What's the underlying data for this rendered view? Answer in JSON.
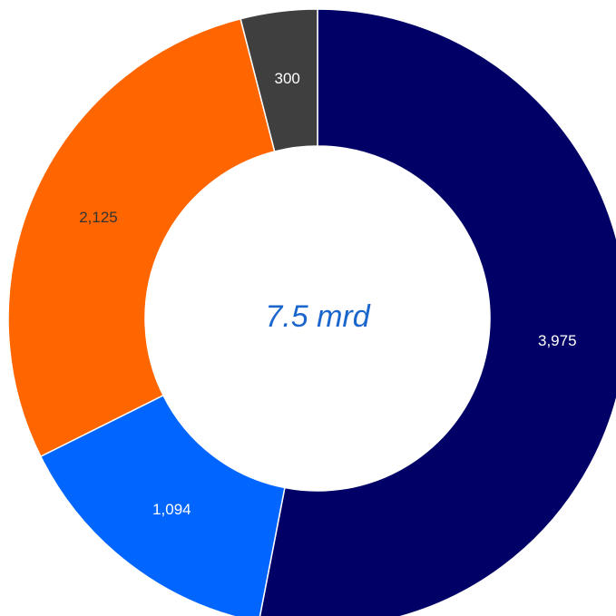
{
  "chart_data": {
    "type": "pie",
    "style": "donut",
    "center_label": "7.5 mrd",
    "start_angle_deg": 0,
    "direction": "clockwise",
    "slices": [
      {
        "label": "3,975",
        "value": 3975,
        "color": "#000066",
        "label_color": "#ffffff"
      },
      {
        "label": "1,094",
        "value": 1094,
        "color": "#0066ff",
        "label_color": "#ffffff"
      },
      {
        "label": "2,125",
        "value": 2125,
        "color": "#ff6600",
        "label_color": "#333333"
      },
      {
        "label": "300",
        "value": 300,
        "color": "#3f3f3f",
        "label_color": "#ffffff"
      }
    ]
  },
  "colors": {
    "center_label": "#1a66cc",
    "background": "#ffffff"
  }
}
